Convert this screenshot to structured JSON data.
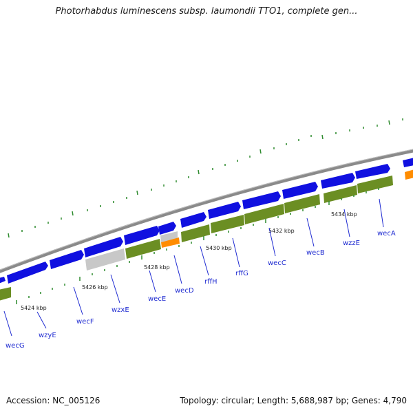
{
  "header": {
    "title": "Photorhabdus luminescens subsp. laumondii TTO1, complete gen..."
  },
  "footer": {
    "accession": "Accession: NC_005126",
    "summary": "Topology: circular; Length: 5,688,987 bp; Genes: 4,790"
  },
  "map": {
    "kbp_labels": [
      "5424 kbp",
      "5426 kbp",
      "5428 kbp",
      "5430 kbp",
      "5432 kbp",
      "5434 kbp"
    ],
    "gene_labels": [
      "wecG",
      "wzyE",
      "wecF",
      "wzxE",
      "wecE",
      "wecD",
      "rffH",
      "rffG",
      "wecC",
      "wecB",
      "wzzE",
      "wecA"
    ],
    "colors": {
      "backbone": "#8a8a8a",
      "cds": "#1010e0",
      "feature_green": "#6b8e23",
      "feature_gray": "#c8c8c8",
      "feature_orange": "#ff8c00",
      "ticks": "#2e8b2e",
      "gene_label": "#1f2bd1"
    }
  }
}
